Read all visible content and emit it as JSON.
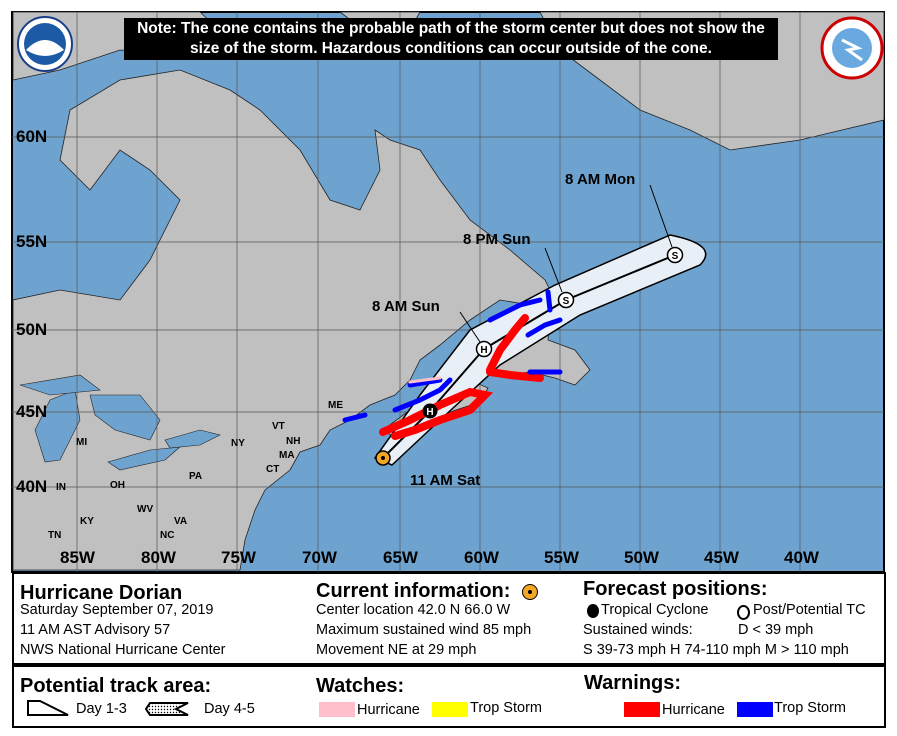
{
  "note": "Note: The cone contains the probable path of the storm center but does not show the size of the storm. Hazardous conditions can occur outside of the cone.",
  "logos": {
    "left": "NOAA",
    "right": "National Weather Service"
  },
  "map": {
    "lat_labels": [
      "60N",
      "55N",
      "50N",
      "45N",
      "40N"
    ],
    "lon_labels": [
      "85W",
      "80W",
      "75W",
      "70W",
      "65W",
      "60W",
      "55W",
      "50W",
      "45W",
      "40W"
    ],
    "state_labels": [
      "MI",
      "IN",
      "OH",
      "KY",
      "TN",
      "WV",
      "VA",
      "NC",
      "PA",
      "NY",
      "VT",
      "NH",
      "MA",
      "CT",
      "ME"
    ],
    "colors": {
      "ocean": "#6fa3cf",
      "land": "#c0c0c0",
      "hurricane_warning": "#ff0000",
      "ts_warning": "#0000ff",
      "hurricane_watch": "#ffc0cb",
      "ts_watch": "#ffff00",
      "current": "#f5a623"
    },
    "track_points": [
      {
        "label": "11 AM Sat",
        "type": "current",
        "lat": 42.0,
        "lon": -66.0
      },
      {
        "label": "",
        "type": "H",
        "lat": 44.5,
        "lon": -63.0
      },
      {
        "label": "8 AM Sun",
        "type": "H",
        "lat": 48.5,
        "lon": -60.0
      },
      {
        "label": "8 PM Sun",
        "type": "S",
        "lat": 51.5,
        "lon": -55.0
      },
      {
        "label": "8 AM Mon",
        "type": "S",
        "lat": 54.3,
        "lon": -48.0
      }
    ]
  },
  "info": {
    "storm_name": "Hurricane Dorian",
    "date": "Saturday September 07, 2019",
    "advisory": "11 AM AST Advisory 57",
    "source": "NWS National Hurricane Center",
    "current_title": "Current information:",
    "center": "Center location 42.0 N 66.0 W",
    "wind": "Maximum sustained wind 85 mph",
    "movement": "Movement NE at 29 mph",
    "forecast_title": "Forecast positions:",
    "tc": "Tropical Cyclone",
    "ptc": "Post/Potential TC",
    "sustained": "Sustained winds:",
    "d": "D < 39 mph",
    "scale": "S 39-73 mph  H 74-110 mph  M > 110 mph"
  },
  "legend": {
    "track_title": "Potential track area:",
    "day13": "Day 1-3",
    "day45": "Day 4-5",
    "watches_title": "Watches:",
    "watch_hurricane": "Hurricane",
    "watch_ts": "Trop Storm",
    "warnings_title": "Warnings:",
    "warn_hurricane": "Hurricane",
    "warn_ts": "Trop Storm"
  }
}
